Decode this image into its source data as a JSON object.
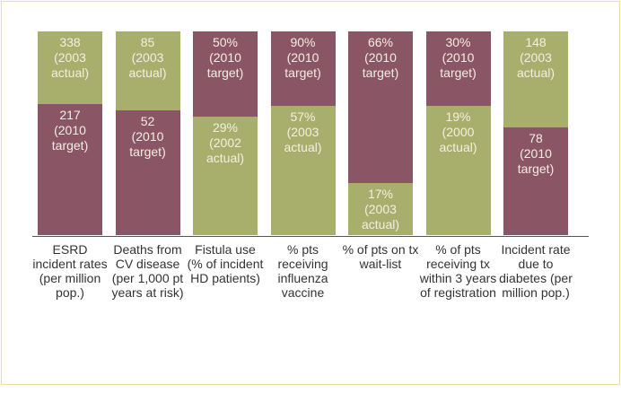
{
  "chart_data": {
    "type": "bar",
    "categories": [
      "ESRD incident rates (per million pop.)",
      "Deaths from CV disease (per 1,000 pt years at risk)",
      "Fistula use (% of incident HD patients)",
      "% pts receiving influenza vaccine",
      "% of pts on tx wait-list",
      "% of pts receiving tx within 3 years of registration",
      "Incident rate due to diabetes (per million pop.)"
    ],
    "series": [
      {
        "values": [
          338,
          85,
          50,
          90,
          66,
          30,
          148
        ],
        "value_labels": [
          "338",
          "85",
          "50%",
          "90%",
          "66%",
          "30%",
          "148"
        ],
        "notes": [
          "(2003 actual)",
          "(2003 actual)",
          "(2010 target)",
          "(2010 target)",
          "(2010 target)",
          "(2010 target)",
          "(2003 actual)"
        ],
        "colors": [
          "#a8ae6c",
          "#a8ae6c",
          "#8a5565",
          "#8a5565",
          "#8a5565",
          "#8a5565",
          "#a8ae6c"
        ]
      },
      {
        "values": [
          217,
          52,
          29,
          57,
          17,
          19,
          78
        ],
        "value_labels": [
          "217",
          "52",
          "29%",
          "57%",
          "17%",
          "19%",
          "78"
        ],
        "notes": [
          "(2010 target)",
          "(2010 target)",
          "(2002 actual)",
          "(2003 actual)",
          "(2003 actual)",
          "(2000 actual)",
          "(2010 target)"
        ],
        "colors": [
          "#8a5565",
          "#8a5565",
          "#a8ae6c",
          "#a8ae6c",
          "#a8ae6c",
          "#a8ae6c",
          "#8a5565"
        ]
      }
    ]
  }
}
